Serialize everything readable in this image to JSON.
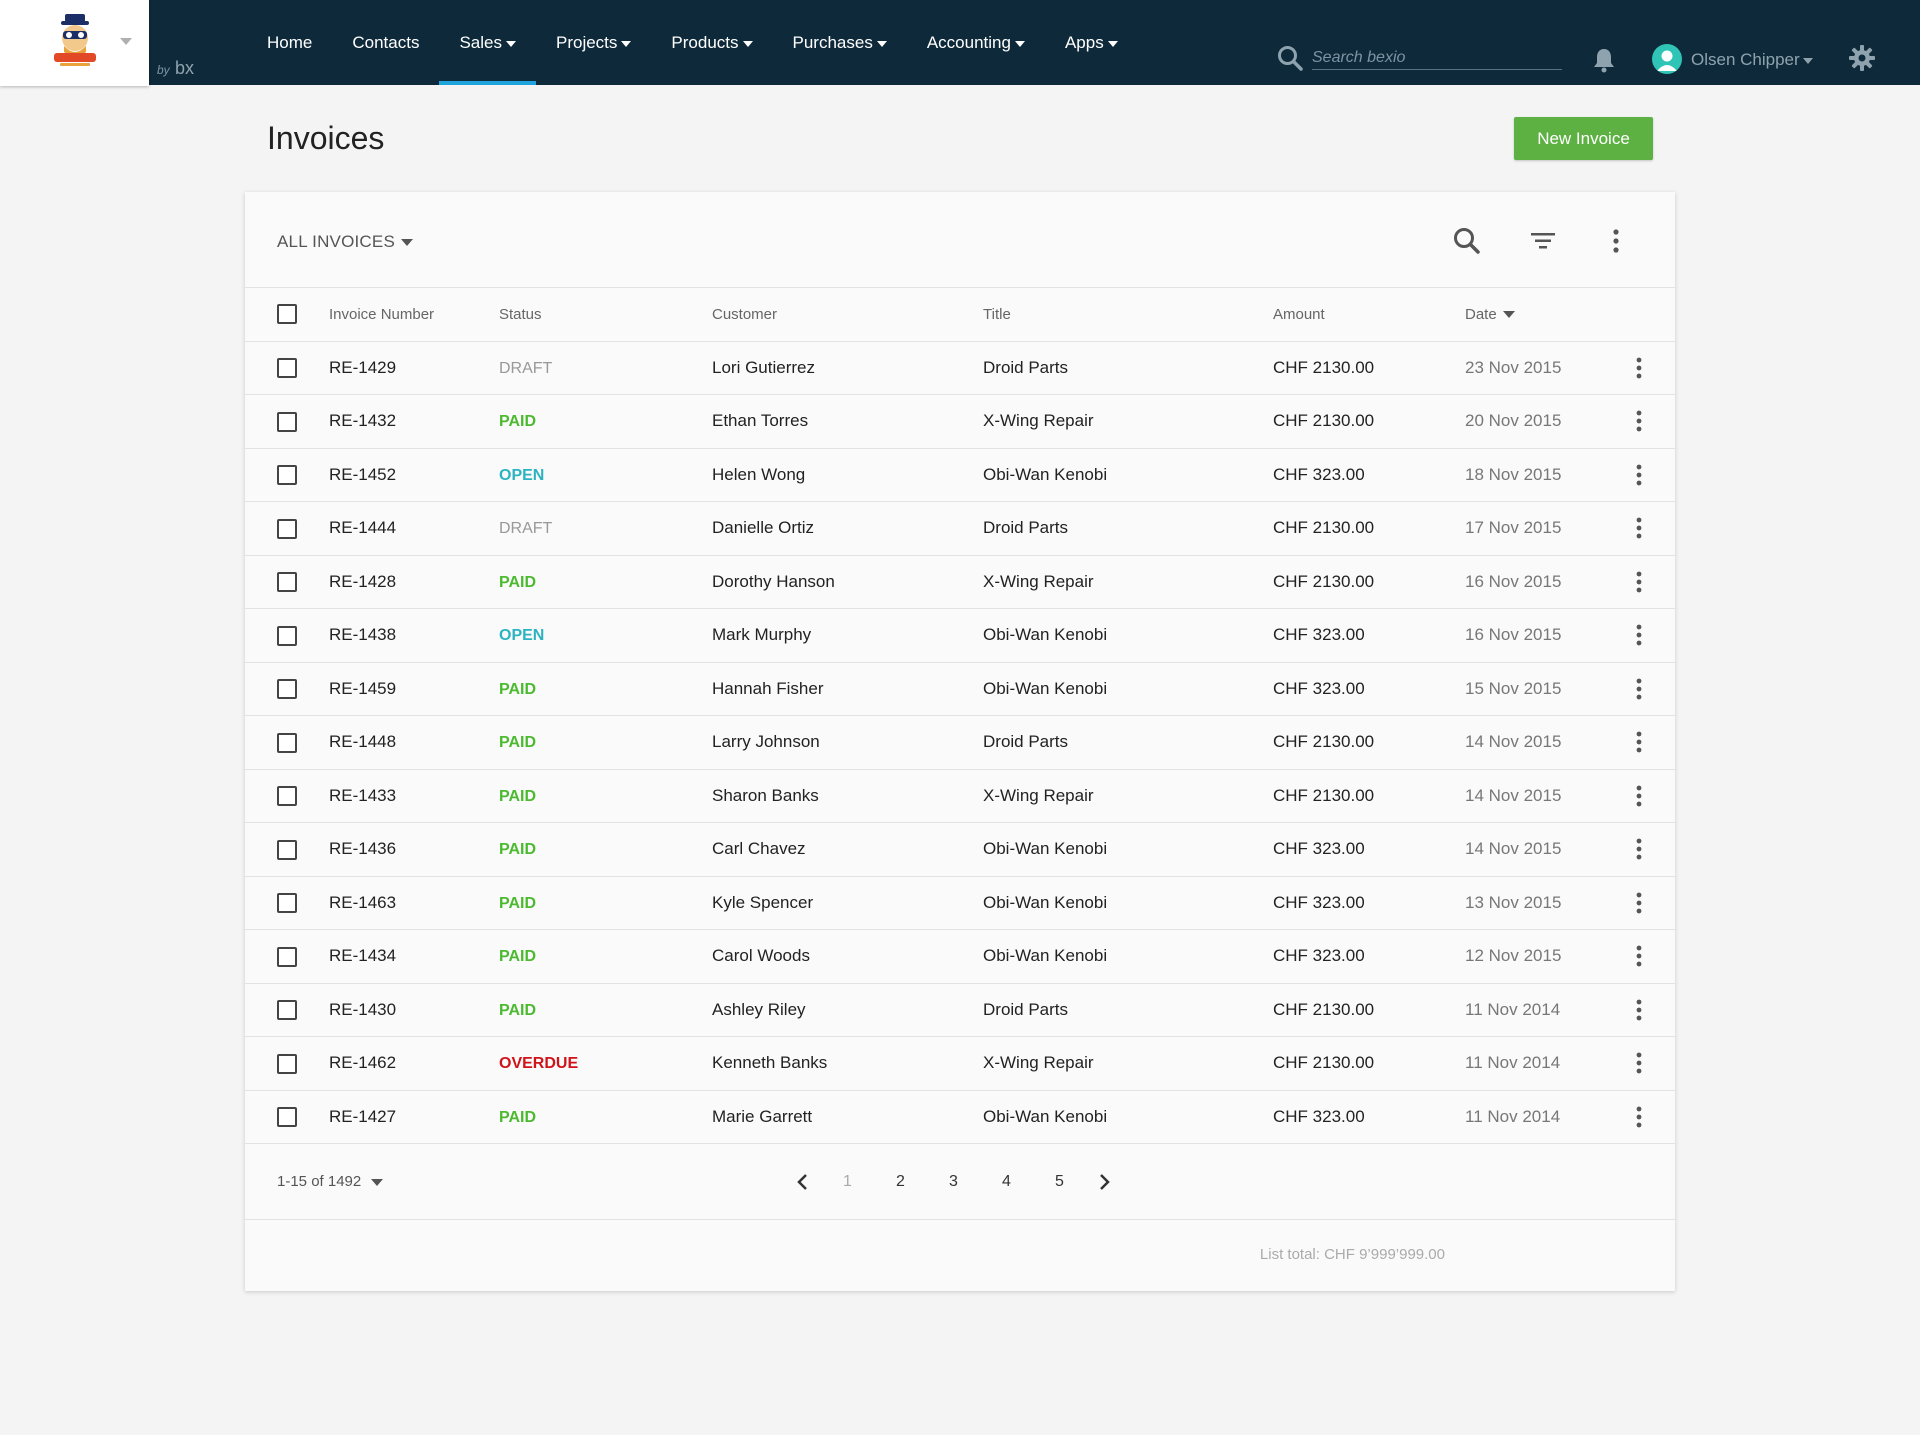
{
  "brand": {
    "byline_prefix": "by",
    "byline_mark": "bx"
  },
  "nav": {
    "items": [
      {
        "label": "Home",
        "dropdown": false,
        "active": false
      },
      {
        "label": "Contacts",
        "dropdown": false,
        "active": false
      },
      {
        "label": "Sales",
        "dropdown": true,
        "active": true
      },
      {
        "label": "Projects",
        "dropdown": true,
        "active": false
      },
      {
        "label": "Products",
        "dropdown": true,
        "active": false
      },
      {
        "label": "Purchases",
        "dropdown": true,
        "active": false
      },
      {
        "label": "Accounting",
        "dropdown": true,
        "active": false
      },
      {
        "label": "Apps",
        "dropdown": true,
        "active": false
      }
    ],
    "search_placeholder": "Search bexio",
    "user_name": "Olsen Chipper"
  },
  "page": {
    "title": "Invoices",
    "new_button": "New Invoice"
  },
  "list": {
    "filter_label": "ALL INVOICES",
    "columns": {
      "number": "Invoice Number",
      "status": "Status",
      "customer": "Customer",
      "title": "Title",
      "amount": "Amount",
      "date": "Date"
    },
    "rows": [
      {
        "number": "RE-1429",
        "status": "DRAFT",
        "status_class": "st-draft",
        "customer": "Lori Gutierrez",
        "title": "Droid Parts",
        "amount": "CHF 2130.00",
        "date": "23 Nov 2015"
      },
      {
        "number": "RE-1432",
        "status": "PAID",
        "status_class": "st-paid",
        "customer": "Ethan Torres",
        "title": "X-Wing Repair",
        "amount": "CHF 2130.00",
        "date": "20 Nov 2015"
      },
      {
        "number": "RE-1452",
        "status": "OPEN",
        "status_class": "st-open",
        "customer": "Helen Wong",
        "title": "Obi-Wan Kenobi",
        "amount": "CHF 323.00",
        "date": "18 Nov 2015"
      },
      {
        "number": "RE-1444",
        "status": "DRAFT",
        "status_class": "st-draft",
        "customer": "Danielle Ortiz",
        "title": "Droid Parts",
        "amount": "CHF 2130.00",
        "date": "17 Nov 2015"
      },
      {
        "number": "RE-1428",
        "status": "PAID",
        "status_class": "st-paid",
        "customer": "Dorothy Hanson",
        "title": "X-Wing Repair",
        "amount": "CHF 2130.00",
        "date": "16 Nov 2015"
      },
      {
        "number": "RE-1438",
        "status": "OPEN",
        "status_class": "st-open",
        "customer": "Mark Murphy",
        "title": "Obi-Wan Kenobi",
        "amount": "CHF 323.00",
        "date": "16 Nov 2015"
      },
      {
        "number": "RE-1459",
        "status": "PAID",
        "status_class": "st-paid",
        "customer": "Hannah Fisher",
        "title": "Obi-Wan Kenobi",
        "amount": "CHF 323.00",
        "date": "15 Nov 2015"
      },
      {
        "number": "RE-1448",
        "status": "PAID",
        "status_class": "st-paid",
        "customer": "Larry Johnson",
        "title": "Droid Parts",
        "amount": "CHF 2130.00",
        "date": "14 Nov 2015"
      },
      {
        "number": "RE-1433",
        "status": "PAID",
        "status_class": "st-paid",
        "customer": "Sharon Banks",
        "title": "X-Wing Repair",
        "amount": "CHF 2130.00",
        "date": "14 Nov 2015"
      },
      {
        "number": "RE-1436",
        "status": "PAID",
        "status_class": "st-paid",
        "customer": "Carl Chavez",
        "title": "Obi-Wan Kenobi",
        "amount": "CHF 323.00",
        "date": "14 Nov 2015"
      },
      {
        "number": "RE-1463",
        "status": "PAID",
        "status_class": "st-paid",
        "customer": "Kyle Spencer",
        "title": "Obi-Wan Kenobi",
        "amount": "CHF 323.00",
        "date": "13 Nov 2015"
      },
      {
        "number": "RE-1434",
        "status": "PAID",
        "status_class": "st-paid",
        "customer": "Carol Woods",
        "title": "Obi-Wan Kenobi",
        "amount": "CHF 323.00",
        "date": "12 Nov 2015"
      },
      {
        "number": "RE-1430",
        "status": "PAID",
        "status_class": "st-paid",
        "customer": "Ashley Riley",
        "title": "Droid Parts",
        "amount": "CHF 2130.00",
        "date": "11 Nov 2014"
      },
      {
        "number": "RE-1462",
        "status": "OVERDUE",
        "status_class": "st-overdue",
        "customer": "Kenneth Banks",
        "title": "X-Wing Repair",
        "amount": "CHF 2130.00",
        "date": "11 Nov 2014"
      },
      {
        "number": "RE-1427",
        "status": "PAID",
        "status_class": "st-paid",
        "customer": "Marie Garrett",
        "title": "Obi-Wan Kenobi",
        "amount": "CHF 323.00",
        "date": "11 Nov 2014"
      }
    ],
    "range_label": "1-15 of 1492",
    "pages": [
      "1",
      "2",
      "3",
      "4",
      "5"
    ],
    "current_page": "1",
    "list_total": "List total: CHF 9’999’999.00"
  },
  "colors": {
    "topbar": "#0e2a3a",
    "nav_active_underline": "#1ea3dd",
    "primary_button": "#5cb142",
    "status_paid": "#4cba30",
    "status_open": "#2cb3c2",
    "status_overdue": "#d0131a",
    "status_draft": "#999999"
  }
}
